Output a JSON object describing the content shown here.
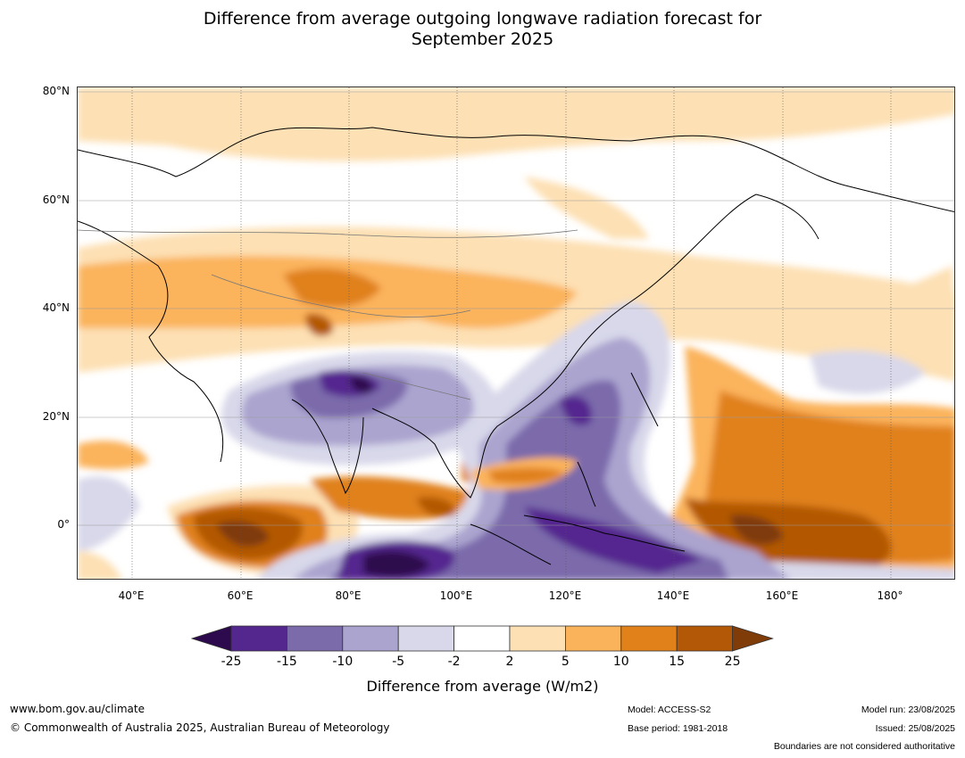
{
  "title_line1": "Difference from average outgoing longwave radiation forecast for",
  "title_line2": "September 2025",
  "lat_labels": [
    "80°N",
    "60°N",
    "40°N",
    "20°N",
    "0°"
  ],
  "lon_labels": [
    "40°E",
    "60°E",
    "80°E",
    "100°E",
    "120°E",
    "140°E",
    "160°E",
    "180°"
  ],
  "colorbar": {
    "label": "Difference from average (W/m2)",
    "ticks": [
      "-25",
      "-15",
      "-10",
      "-5",
      "-2",
      "2",
      "5",
      "10",
      "15",
      "25"
    ],
    "colors": [
      "#2d0a4e",
      "#54278f",
      "#7b6bab",
      "#aba4cf",
      "#d8d8ea",
      "#ffffff",
      "#fde0b4",
      "#fbb35b",
      "#e0811a",
      "#b35806",
      "#7f3b08"
    ]
  },
  "footer": {
    "website": "www.bom.gov.au/climate",
    "copyright": "© Commonwealth of Australia 2025, Australian Bureau of Meteorology",
    "model": "Model: ACCESS-S2",
    "base_period": "Base period: 1981-2018",
    "model_run": "Model run: 23/08/2025",
    "issued": "Issued: 25/08/2025",
    "disclaimer": "Boundaries are not considered authoritative"
  }
}
